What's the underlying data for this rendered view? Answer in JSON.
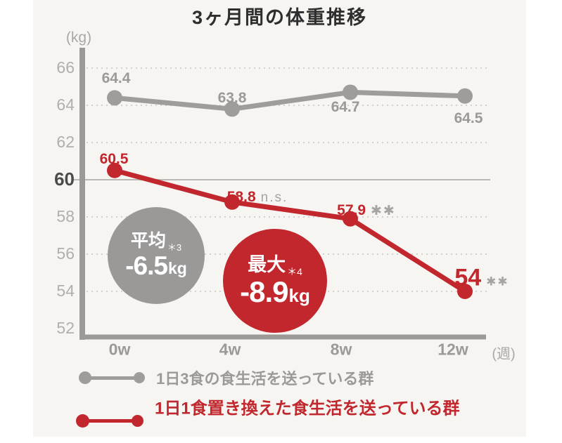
{
  "title": "3ヶ月間の体重推移",
  "chart_data": {
    "type": "line",
    "title": "3ヶ月間の体重推移",
    "y_unit": "(kg)",
    "x_unit": "(週)",
    "categories": [
      "0w",
      "4w",
      "8w",
      "12w"
    ],
    "yticks": [
      66,
      64,
      62,
      60,
      58,
      56,
      54,
      52
    ],
    "ylim": [
      51.5,
      66.5
    ],
    "emphasized_ytick": 60,
    "grid": "dotted horizontal lines at each 2kg, solid line at 60",
    "legend_position": "bottom",
    "series": [
      {
        "name": "1日3食の食生活を送っている群",
        "color": "#9e9d9b",
        "values": [
          64.4,
          63.8,
          64.7,
          64.5
        ],
        "point_labels": [
          "64.4",
          "63.8",
          "64.7",
          "64.5"
        ],
        "annotations": [
          "",
          "",
          "",
          ""
        ]
      },
      {
        "name": "1日1食置き換えた食生活を送っている群",
        "color": "#c1272d",
        "values": [
          60.5,
          58.8,
          57.9,
          54
        ],
        "point_labels": [
          "60.5",
          "58.8",
          "57.9",
          "54"
        ],
        "annotations": [
          "",
          "n.s.",
          "✱✱",
          "✱✱"
        ]
      }
    ],
    "callouts": [
      {
        "label": "平均",
        "note": "＊3",
        "value": "-6.5",
        "unit": "kg",
        "bg": "#9a9998"
      },
      {
        "label": "最大",
        "note": "＊4",
        "value": "-8.9",
        "unit": "kg",
        "bg": "#c1272d"
      }
    ]
  },
  "legend": {
    "items": [
      {
        "label": "1日3食の食生活を送っている群",
        "color": "#9e9d9b"
      },
      {
        "label": "1日1食置き換えた食生活を送っている群",
        "color": "#c1272d"
      }
    ]
  },
  "colors": {
    "background_panel": "#f6f5f2",
    "page_margin": "#ffffff",
    "axis": "#9b9a97",
    "grid_dotted": "#d3d1ce",
    "grid_solid_60": "#bab8b5",
    "red": "#c1272d",
    "gray": "#9e9d9b"
  }
}
